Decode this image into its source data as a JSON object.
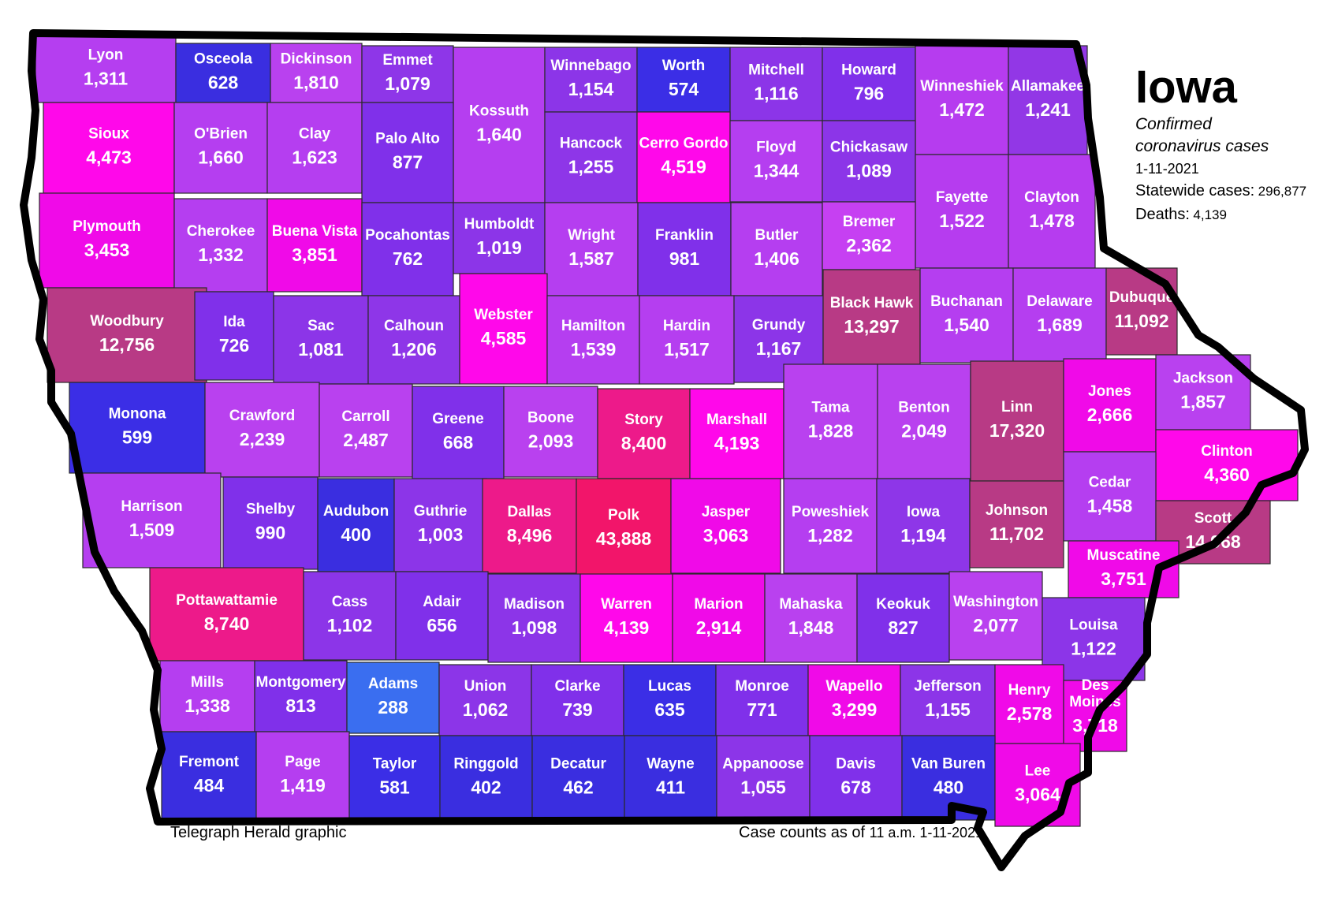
{
  "title": "Iowa",
  "subtitle_line1": "Confirmed",
  "subtitle_line2": "coronavirus cases",
  "date": "1-11-2021",
  "statewide": {
    "label": "Statewide cases:",
    "value": "296,877"
  },
  "deaths": {
    "label": "Deaths:",
    "value": "4,139"
  },
  "credit": "Telegraph Herald graphic",
  "asof": {
    "label": "Case counts as of",
    "value": "11 a.m. 1-11-2021"
  },
  "colors": {
    "outline": "#000000",
    "low": "#2e2ee8",
    "mid": "#a535ea",
    "high": "#ff00e6",
    "very_high": "#b83a85"
  },
  "counties": [
    {
      "name": "Lyon",
      "cases": "1,311",
      "color": "#b53ef0"
    },
    {
      "name": "Osceola",
      "cases": "628",
      "color": "#3a2ee0"
    },
    {
      "name": "Dickinson",
      "cases": "1,810",
      "color": "#b941ef"
    },
    {
      "name": "Emmet",
      "cases": "1,079",
      "color": "#8e36e8"
    },
    {
      "name": "Kossuth",
      "cases": "1,640",
      "color": "#b53ef0"
    },
    {
      "name": "Winnebago",
      "cases": "1,154",
      "color": "#8c35e8"
    },
    {
      "name": "Worth",
      "cases": "574",
      "color": "#3b2ee6"
    },
    {
      "name": "Mitchell",
      "cases": "1,116",
      "color": "#8c35e8"
    },
    {
      "name": "Howard",
      "cases": "796",
      "color": "#8030ea"
    },
    {
      "name": "Winneshiek",
      "cases": "1,472",
      "color": "#b63cef"
    },
    {
      "name": "Allamakee",
      "cases": "1,241",
      "color": "#9237e6"
    },
    {
      "name": "Sioux",
      "cases": "4,473",
      "color": "#ff08ea"
    },
    {
      "name": "O'Brien",
      "cases": "1,660",
      "color": "#b53ef0"
    },
    {
      "name": "Clay",
      "cases": "1,623",
      "color": "#b53ef0"
    },
    {
      "name": "Palo Alto",
      "cases": "877",
      "color": "#8030ea"
    },
    {
      "name": "Hancock",
      "cases": "1,255",
      "color": "#8e36e8"
    },
    {
      "name": "Cerro Gordo",
      "cases": "4,519",
      "color": "#ff08ea"
    },
    {
      "name": "Floyd",
      "cases": "1,344",
      "color": "#b53ef0"
    },
    {
      "name": "Chickasaw",
      "cases": "1,089",
      "color": "#8c35e8"
    },
    {
      "name": "Fayette",
      "cases": "1,522",
      "color": "#b63cef"
    },
    {
      "name": "Clayton",
      "cases": "1,478",
      "color": "#b63cef"
    },
    {
      "name": "Plymouth",
      "cases": "3,453",
      "color": "#f00ae8"
    },
    {
      "name": "Cherokee",
      "cases": "1,332",
      "color": "#b53ef0"
    },
    {
      "name": "Buena Vista",
      "cases": "3,851",
      "color": "#f00ae8"
    },
    {
      "name": "Pocahontas",
      "cases": "762",
      "color": "#8030ea"
    },
    {
      "name": "Humboldt",
      "cases": "1,019",
      "color": "#8c35e8"
    },
    {
      "name": "Wright",
      "cases": "1,587",
      "color": "#b53ef0"
    },
    {
      "name": "Franklin",
      "cases": "981",
      "color": "#8030ea"
    },
    {
      "name": "Butler",
      "cases": "1,406",
      "color": "#b53ef0"
    },
    {
      "name": "Bremer",
      "cases": "2,362",
      "color": "#c640f2"
    },
    {
      "name": "Woodbury",
      "cases": "12,756",
      "color": "#b83a85"
    },
    {
      "name": "Ida",
      "cases": "726",
      "color": "#8030ea"
    },
    {
      "name": "Sac",
      "cases": "1,081",
      "color": "#8c35e8"
    },
    {
      "name": "Calhoun",
      "cases": "1,206",
      "color": "#8e36e8"
    },
    {
      "name": "Webster",
      "cases": "4,585",
      "color": "#ff08ea"
    },
    {
      "name": "Hamilton",
      "cases": "1,539",
      "color": "#b53ef0"
    },
    {
      "name": "Hardin",
      "cases": "1,517",
      "color": "#b53ef0"
    },
    {
      "name": "Grundy",
      "cases": "1,167",
      "color": "#8c35e8"
    },
    {
      "name": "Black Hawk",
      "cases": "13,297",
      "color": "#b83a85"
    },
    {
      "name": "Buchanan",
      "cases": "1,540",
      "color": "#b53ef0"
    },
    {
      "name": "Delaware",
      "cases": "1,689",
      "color": "#b53ef0"
    },
    {
      "name": "Dubuque",
      "cases": "11,092",
      "color": "#b83a85"
    },
    {
      "name": "Monona",
      "cases": "599",
      "color": "#3b2ee6"
    },
    {
      "name": "Crawford",
      "cases": "2,239",
      "color": "#b941ef"
    },
    {
      "name": "Carroll",
      "cases": "2,487",
      "color": "#b941ef"
    },
    {
      "name": "Greene",
      "cases": "668",
      "color": "#8030ea"
    },
    {
      "name": "Boone",
      "cases": "2,093",
      "color": "#b941ef"
    },
    {
      "name": "Story",
      "cases": "8,400",
      "color": "#ed1a8a"
    },
    {
      "name": "Marshall",
      "cases": "4,193",
      "color": "#ff08ea"
    },
    {
      "name": "Tama",
      "cases": "1,828",
      "color": "#b941ef"
    },
    {
      "name": "Benton",
      "cases": "2,049",
      "color": "#b941ef"
    },
    {
      "name": "Linn",
      "cases": "17,320",
      "color": "#b83a85"
    },
    {
      "name": "Jones",
      "cases": "2,666",
      "color": "#f00ae8"
    },
    {
      "name": "Jackson",
      "cases": "1,857",
      "color": "#b941ef"
    },
    {
      "name": "Clinton",
      "cases": "4,360",
      "color": "#ff08ea"
    },
    {
      "name": "Harrison",
      "cases": "1,509",
      "color": "#b53ef0"
    },
    {
      "name": "Shelby",
      "cases": "990",
      "color": "#8030ea"
    },
    {
      "name": "Audubon",
      "cases": "400",
      "color": "#3a2ee0"
    },
    {
      "name": "Guthrie",
      "cases": "1,003",
      "color": "#8c35e8"
    },
    {
      "name": "Dallas",
      "cases": "8,496",
      "color": "#ed1a8a"
    },
    {
      "name": "Polk",
      "cases": "43,888",
      "color": "#f2156a"
    },
    {
      "name": "Jasper",
      "cases": "3,063",
      "color": "#f00ae8"
    },
    {
      "name": "Poweshiek",
      "cases": "1,282",
      "color": "#b53ef0"
    },
    {
      "name": "Iowa",
      "cases": "1,194",
      "color": "#8e36e8"
    },
    {
      "name": "Johnson",
      "cases": "11,702",
      "color": "#b83a85"
    },
    {
      "name": "Cedar",
      "cases": "1,458",
      "color": "#b53ef0"
    },
    {
      "name": "Scott",
      "cases": "14,968",
      "color": "#b83a85"
    },
    {
      "name": "Muscatine",
      "cases": "3,751",
      "color": "#f00ae8"
    },
    {
      "name": "Pottawattamie",
      "cases": "8,740",
      "color": "#ed1a8a"
    },
    {
      "name": "Cass",
      "cases": "1,102",
      "color": "#8c35e8"
    },
    {
      "name": "Adair",
      "cases": "656",
      "color": "#8030ea"
    },
    {
      "name": "Madison",
      "cases": "1,098",
      "color": "#8c35e8"
    },
    {
      "name": "Warren",
      "cases": "4,139",
      "color": "#ff08ea"
    },
    {
      "name": "Marion",
      "cases": "2,914",
      "color": "#f00ae8"
    },
    {
      "name": "Mahaska",
      "cases": "1,848",
      "color": "#b941ef"
    },
    {
      "name": "Keokuk",
      "cases": "827",
      "color": "#8030ea"
    },
    {
      "name": "Washington",
      "cases": "2,077",
      "color": "#b941ef"
    },
    {
      "name": "Louisa",
      "cases": "1,122",
      "color": "#8c35e8"
    },
    {
      "name": "Mills",
      "cases": "1,338",
      "color": "#b53ef0"
    },
    {
      "name": "Montgomery",
      "cases": "813",
      "color": "#8030ea"
    },
    {
      "name": "Adams",
      "cases": "288",
      "color": "#3a6ef0"
    },
    {
      "name": "Union",
      "cases": "1,062",
      "color": "#8c35e8"
    },
    {
      "name": "Clarke",
      "cases": "739",
      "color": "#8030ea"
    },
    {
      "name": "Lucas",
      "cases": "635",
      "color": "#3b2ee6"
    },
    {
      "name": "Monroe",
      "cases": "771",
      "color": "#8030ea"
    },
    {
      "name": "Wapello",
      "cases": "3,299",
      "color": "#f00ae8"
    },
    {
      "name": "Jefferson",
      "cases": "1,155",
      "color": "#8c35e8"
    },
    {
      "name": "Henry",
      "cases": "2,578",
      "color": "#f00ae8"
    },
    {
      "name": "Des Moines",
      "cases": "3,718",
      "color": "#f00ae8"
    },
    {
      "name": "Fremont",
      "cases": "484",
      "color": "#3a2ee0"
    },
    {
      "name": "Page",
      "cases": "1,419",
      "color": "#b53ef0"
    },
    {
      "name": "Taylor",
      "cases": "581",
      "color": "#3b2ee6"
    },
    {
      "name": "Ringgold",
      "cases": "402",
      "color": "#3a2ee0"
    },
    {
      "name": "Decatur",
      "cases": "462",
      "color": "#3a2ee0"
    },
    {
      "name": "Wayne",
      "cases": "411",
      "color": "#3a2ee0"
    },
    {
      "name": "Appanoose",
      "cases": "1,055",
      "color": "#8c35e8"
    },
    {
      "name": "Davis",
      "cases": "678",
      "color": "#8030ea"
    },
    {
      "name": "Van Buren",
      "cases": "480",
      "color": "#3a2ee0"
    },
    {
      "name": "Lee",
      "cases": "3,064",
      "color": "#f00ae8"
    }
  ]
}
